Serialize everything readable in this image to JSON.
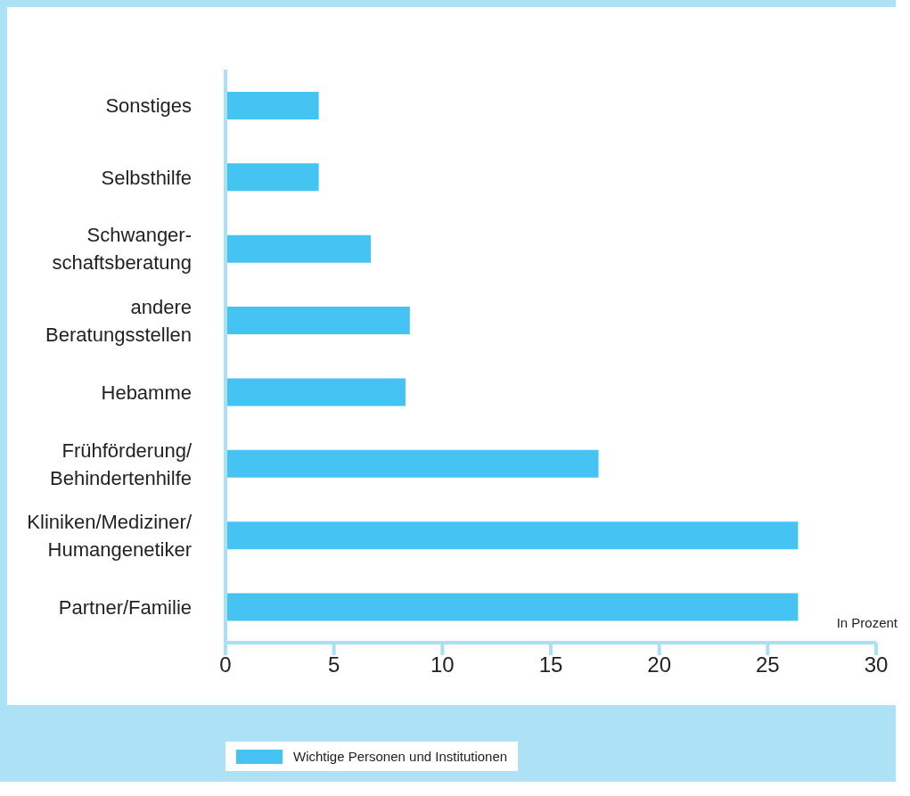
{
  "chart_data": {
    "type": "bar",
    "orientation": "horizontal",
    "xlabel": "In Prozent",
    "categories": [
      "Sonstiges",
      "Selbsthilfe",
      "Schwanger-schaftsberatung",
      "andere Beratungsstellen",
      "Hebamme",
      "Frühförderung/Behindertenhilfe",
      "Kliniken/Mediziner/Humangenetiker",
      "Partner/Familie"
    ],
    "series": [
      {
        "name": "Wichtige Personen und Institutionen",
        "color": "#45c3f2",
        "values": [
          4.3,
          4.3,
          6.7,
          8.5,
          8.3,
          17.2,
          26.4,
          26.4
        ]
      }
    ],
    "xlim": [
      0,
      30
    ],
    "xticks": [
      0,
      5,
      10,
      15,
      20,
      25,
      30
    ],
    "legend": "bottom"
  }
}
